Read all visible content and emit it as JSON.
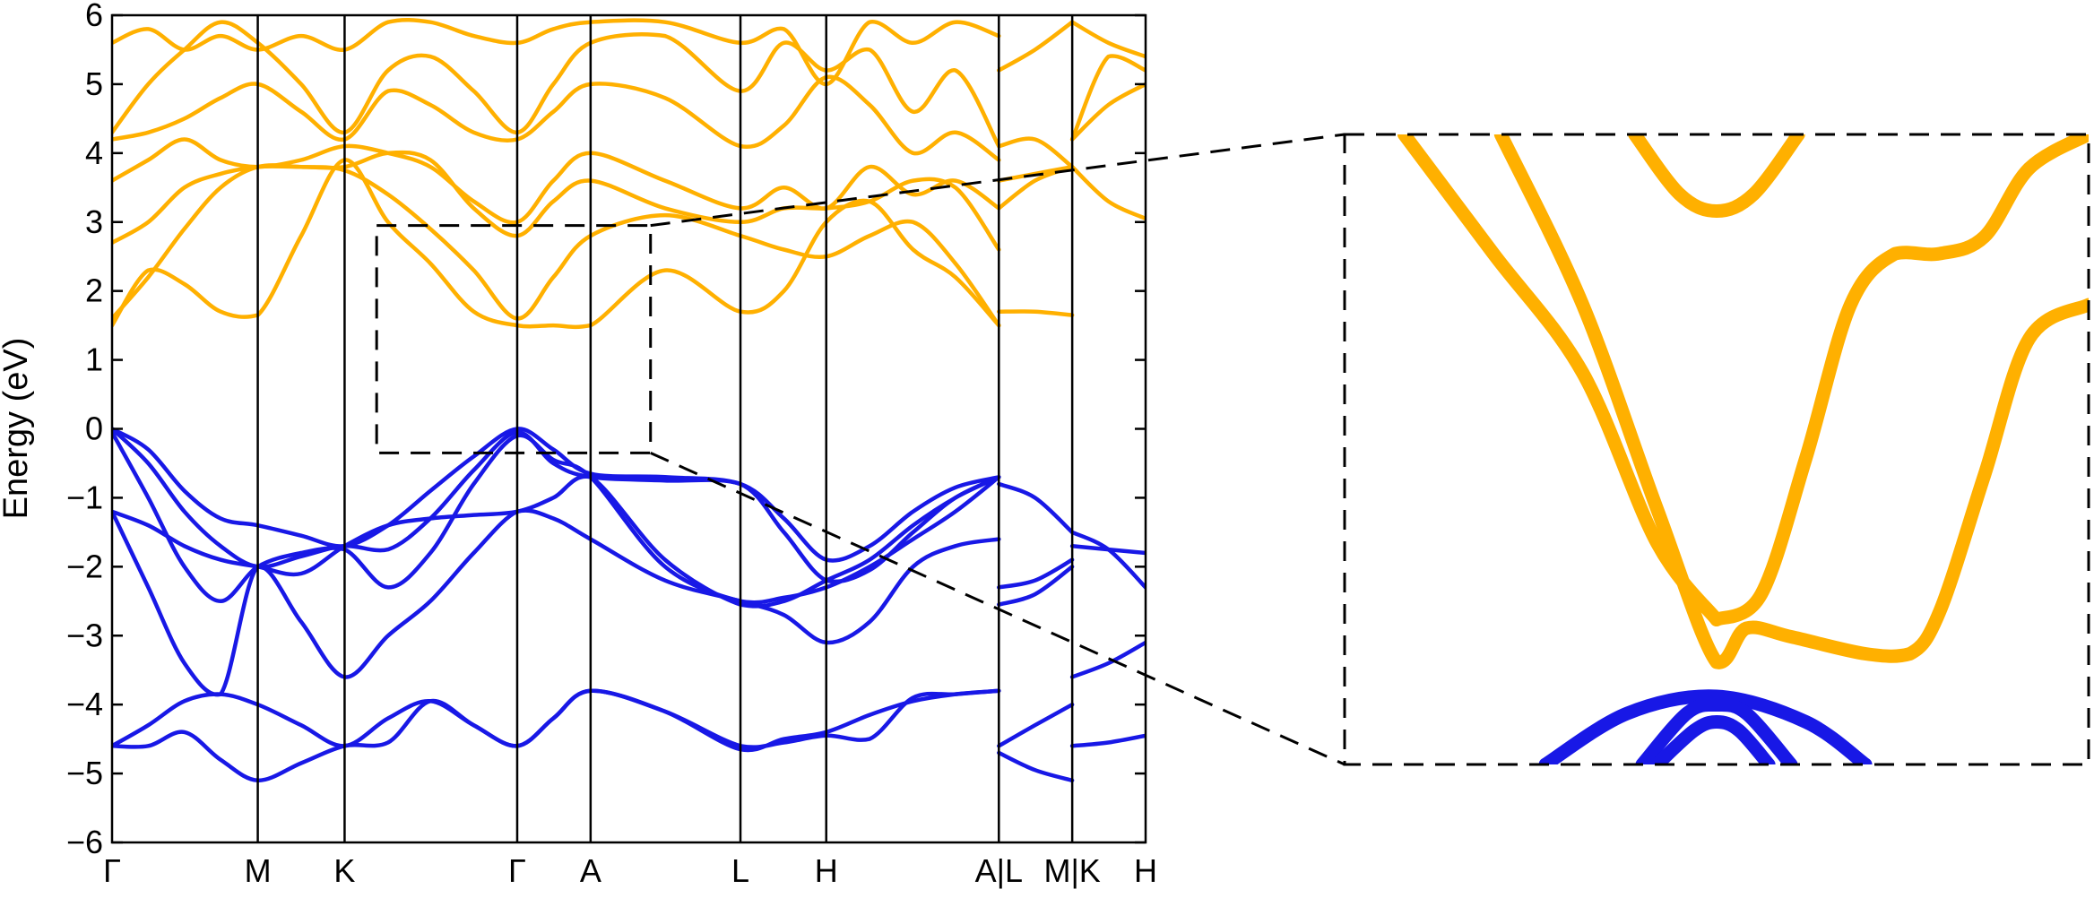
{
  "chart_data": {
    "type": "line",
    "title": "",
    "ylabel": "Energy (eV)",
    "xlabel": "",
    "ylim": [
      -6,
      6
    ],
    "yticks": [
      "6",
      "5",
      "4",
      "3",
      "2",
      "1",
      "0",
      "−1",
      "−2",
      "−3",
      "−4",
      "−5",
      "−6"
    ],
    "ytick_values": [
      6,
      5,
      4,
      3,
      2,
      1,
      0,
      -1,
      -2,
      -3,
      -4,
      -5,
      -6
    ],
    "xrange": [
      0,
      100
    ],
    "kpoints": [
      {
        "label": "Γ",
        "x": 0
      },
      {
        "label": "M",
        "x": 14.1
      },
      {
        "label": "K",
        "x": 22.5
      },
      {
        "label": "Γ",
        "x": 39.2
      },
      {
        "label": "A",
        "x": 46.3
      },
      {
        "label": "L",
        "x": 60.8
      },
      {
        "label": "H",
        "x": 69.1
      },
      {
        "label": "A|L",
        "x": 85.8
      },
      {
        "label": "M|K",
        "x": 92.9
      },
      {
        "label": "H",
        "x": 100
      }
    ],
    "colors": {
      "valence": "#1818e6",
      "conduction": "#ffb000"
    },
    "series": [
      {
        "class": "valence",
        "x": [
          0,
          3.5,
          7,
          10.5,
          14.1,
          18.3,
          22.5,
          26.7,
          30.8,
          35,
          39.2,
          42.7,
          46.3,
          53.5,
          60.8,
          65,
          69.1,
          73.3,
          77.5,
          81.6,
          85.8
        ],
        "values": [
          0,
          -0.3,
          -0.9,
          -1.3,
          -1.4,
          -1.55,
          -1.7,
          -1.4,
          -0.9,
          -0.4,
          0,
          -0.3,
          -0.65,
          -0.7,
          -0.8,
          -1.3,
          -1.9,
          -1.7,
          -1.2,
          -0.85,
          -0.7
        ]
      },
      {
        "class": "valence",
        "x": [
          0,
          3.5,
          7,
          10.5,
          14.1,
          18.3,
          22.5,
          26.7,
          30.8,
          35,
          39.2,
          42.7,
          46.3,
          53.5,
          60.8,
          65,
          69.1,
          73.3,
          77.5,
          81.6,
          85.8
        ],
        "values": [
          0,
          -0.5,
          -1.2,
          -1.7,
          -2.0,
          -1.85,
          -1.7,
          -1.75,
          -1.3,
          -0.6,
          -0.05,
          -0.5,
          -0.7,
          -0.75,
          -0.8,
          -1.5,
          -2.2,
          -2.05,
          -1.5,
          -1.0,
          -0.7
        ]
      },
      {
        "class": "valence",
        "x": [
          0,
          3.5,
          7,
          10.5,
          14.1,
          18.3,
          22.5,
          26.7,
          30.8,
          35,
          39.2,
          42.7,
          46.3,
          53.5,
          60.8,
          65,
          69.1,
          73.3,
          77.5,
          81.6,
          85.8
        ],
        "values": [
          -0.05,
          -1.0,
          -2.0,
          -2.5,
          -2.0,
          -1.8,
          -1.75,
          -2.3,
          -1.8,
          -0.8,
          -0.1,
          -0.45,
          -0.7,
          -2.0,
          -2.5,
          -2.45,
          -2.3,
          -2.0,
          -1.6,
          -1.2,
          -0.7
        ]
      },
      {
        "class": "valence",
        "x": [
          0,
          3.5,
          7,
          10.5,
          14.1,
          18.3,
          22.5,
          26.7,
          30.8,
          35,
          39.2,
          42.7,
          46.3,
          53.5,
          60.8,
          65,
          69.1,
          73.3,
          77.5,
          81.6,
          85.8
        ],
        "values": [
          -1.2,
          -1.4,
          -1.7,
          -1.9,
          -2.0,
          -2.1,
          -1.7,
          -1.4,
          -1.3,
          -1.25,
          -1.2,
          -1.0,
          -0.7,
          -1.9,
          -2.55,
          -2.5,
          -2.2,
          -1.9,
          -1.4,
          -1.0,
          -0.7
        ]
      },
      {
        "class": "valence",
        "x": [
          0,
          3.5,
          7,
          10.5,
          14.1,
          18.3,
          22.5,
          26.7,
          30.8,
          35,
          39.2,
          42.7,
          46.3,
          53.5,
          60.8,
          65,
          69.1,
          73.3,
          77.5,
          81.6,
          85.8
        ],
        "values": [
          -1.2,
          -2.3,
          -3.4,
          -3.85,
          -2.0,
          -2.8,
          -3.6,
          -3.0,
          -2.5,
          -1.8,
          -1.2,
          -1.3,
          -1.6,
          -2.2,
          -2.5,
          -2.7,
          -3.1,
          -2.8,
          -2.0,
          -1.7,
          -1.6
        ]
      },
      {
        "class": "valence",
        "x": [
          0,
          3.5,
          7,
          10.5,
          14.1,
          18.3,
          22.5,
          26.7,
          30.8,
          35,
          39.2,
          42.7,
          46.3,
          53.5,
          60.8,
          65,
          69.1,
          73.3,
          77.5,
          81.6,
          85.8
        ],
        "values": [
          -4.6,
          -4.3,
          -3.95,
          -3.85,
          -4.0,
          -4.3,
          -4.6,
          -4.2,
          -3.95,
          -4.3,
          -4.6,
          -4.2,
          -3.8,
          -4.1,
          -4.65,
          -4.5,
          -4.4,
          -4.15,
          -3.95,
          -3.85,
          -3.8
        ]
      },
      {
        "class": "valence",
        "x": [
          0,
          3.5,
          7,
          10.5,
          14.1,
          18.3,
          22.5,
          26.7,
          30.8,
          35,
          39.2,
          42.7,
          46.3,
          53.5,
          60.8,
          65,
          69.1,
          73.3,
          77.5,
          81.6,
          85.8
        ],
        "values": [
          -4.6,
          -4.6,
          -4.4,
          -4.8,
          -5.1,
          -4.85,
          -4.6,
          -4.55,
          -3.95,
          -4.3,
          -4.6,
          -4.2,
          -3.8,
          -4.1,
          -4.6,
          -4.55,
          -4.45,
          -4.5,
          -3.9,
          -3.85,
          -3.8
        ]
      },
      {
        "class": "valence",
        "x": [
          85.8,
          89.3,
          92.9
        ],
        "values": [
          -0.8,
          -1.0,
          -1.5
        ]
      },
      {
        "class": "valence",
        "x": [
          85.8,
          89.3,
          92.9
        ],
        "values": [
          -2.3,
          -2.2,
          -1.9
        ]
      },
      {
        "class": "valence",
        "x": [
          85.8,
          89.3,
          92.9
        ],
        "values": [
          -2.55,
          -2.4,
          -2.0
        ]
      },
      {
        "class": "valence",
        "x": [
          85.8,
          89.3,
          92.9
        ],
        "values": [
          -4.6,
          -4.3,
          -4.0
        ]
      },
      {
        "class": "valence",
        "x": [
          85.8,
          89.3,
          92.9
        ],
        "values": [
          -4.7,
          -4.95,
          -5.1
        ]
      },
      {
        "class": "valence",
        "x": [
          92.9,
          96.4,
          100
        ],
        "values": [
          -1.5,
          -1.75,
          -2.3
        ]
      },
      {
        "class": "valence",
        "x": [
          92.9,
          96.4,
          100
        ],
        "values": [
          -1.7,
          -1.75,
          -1.8
        ]
      },
      {
        "class": "valence",
        "x": [
          92.9,
          96.4,
          100
        ],
        "values": [
          -3.6,
          -3.4,
          -3.1
        ]
      },
      {
        "class": "valence",
        "x": [
          92.9,
          96.4,
          100
        ],
        "values": [
          -4.6,
          -4.55,
          -4.45
        ]
      },
      {
        "class": "conduction",
        "x": [
          0,
          3.5,
          7,
          10.5,
          14.1,
          18.3,
          22.5,
          26.7,
          30.8,
          35,
          39.2,
          42.7,
          46.3,
          53.5,
          60.8,
          65,
          69.1,
          73.3,
          77.5,
          81.6,
          85.8
        ],
        "values": [
          1.5,
          2.3,
          2.1,
          1.7,
          1.65,
          2.8,
          3.9,
          3.0,
          2.4,
          1.7,
          1.5,
          1.5,
          1.5,
          2.3,
          1.7,
          2.0,
          3.0,
          3.3,
          2.6,
          2.2,
          1.5
        ]
      },
      {
        "class": "conduction",
        "x": [
          0,
          3.5,
          7,
          10.5,
          14.1,
          18.3,
          22.5,
          26.7,
          30.8,
          35,
          39.2,
          42.7,
          46.3,
          53.5,
          60.8,
          65,
          69.1,
          73.3,
          77.5,
          81.6,
          85.8
        ],
        "values": [
          1.6,
          2.2,
          2.9,
          3.5,
          3.8,
          3.8,
          3.75,
          3.4,
          2.9,
          2.3,
          1.6,
          2.2,
          2.8,
          3.1,
          2.8,
          2.6,
          2.5,
          2.8,
          3.0,
          2.4,
          1.5
        ]
      },
      {
        "class": "conduction",
        "x": [
          0,
          3.5,
          7,
          10.5,
          14.1,
          18.3,
          22.5,
          26.7,
          30.8,
          35,
          39.2,
          42.7,
          46.3,
          53.5,
          60.8,
          65,
          69.1,
          73.3,
          77.5,
          81.6,
          85.8
        ],
        "values": [
          2.7,
          3.0,
          3.5,
          3.7,
          3.8,
          3.8,
          3.8,
          4.0,
          3.9,
          3.2,
          2.8,
          3.3,
          3.6,
          3.2,
          3.0,
          3.2,
          3.2,
          3.3,
          3.6,
          3.5,
          2.6
        ]
      },
      {
        "class": "conduction",
        "x": [
          0,
          3.5,
          7,
          10.5,
          14.1,
          18.3,
          22.5,
          26.7,
          30.8,
          35,
          39.2,
          42.7,
          46.3,
          53.5,
          60.8,
          65,
          69.1,
          73.3,
          77.5,
          81.6,
          85.8
        ],
        "values": [
          3.6,
          3.9,
          4.2,
          3.9,
          3.8,
          3.9,
          4.1,
          4.0,
          3.8,
          3.3,
          3.0,
          3.6,
          4.0,
          3.6,
          3.2,
          3.5,
          3.2,
          3.8,
          3.4,
          3.6,
          3.2
        ]
      },
      {
        "class": "conduction",
        "x": [
          0,
          3.5,
          7,
          10.5,
          14.1,
          18.3,
          22.5,
          26.7,
          30.8,
          35,
          39.2,
          42.7,
          46.3,
          53.5,
          60.8,
          65,
          69.1,
          73.3,
          77.5,
          81.6,
          85.8
        ],
        "values": [
          4.2,
          4.3,
          4.5,
          4.8,
          5.0,
          4.6,
          4.2,
          4.9,
          4.7,
          4.3,
          4.2,
          4.6,
          5.0,
          4.8,
          4.1,
          4.4,
          5.1,
          4.7,
          4.0,
          4.3,
          3.9
        ]
      },
      {
        "class": "conduction",
        "x": [
          0,
          3.5,
          7,
          10.5,
          14.1,
          18.3,
          22.5,
          26.7,
          30.8,
          35,
          39.2,
          42.7,
          46.3,
          53.5,
          60.8,
          65,
          69.1,
          73.3,
          77.5,
          81.6,
          85.8
        ],
        "values": [
          4.3,
          5.0,
          5.5,
          5.9,
          5.6,
          5.0,
          4.3,
          5.2,
          5.4,
          4.9,
          4.3,
          5.0,
          5.6,
          5.7,
          4.9,
          5.6,
          5.2,
          5.5,
          4.6,
          5.2,
          4.1
        ]
      },
      {
        "class": "conduction",
        "x": [
          0,
          3.5,
          7,
          10.5,
          14.1,
          18.3,
          22.5,
          26.7,
          30.8,
          35,
          39.2,
          42.7,
          46.3,
          53.5,
          60.8,
          65,
          69.1,
          73.3,
          77.5,
          81.6,
          85.8
        ],
        "values": [
          5.6,
          5.8,
          5.5,
          5.7,
          5.5,
          5.7,
          5.5,
          5.9,
          5.9,
          5.7,
          5.6,
          5.8,
          5.9,
          5.9,
          5.6,
          5.8,
          5.0,
          5.9,
          5.6,
          5.9,
          5.7
        ]
      },
      {
        "class": "conduction",
        "x": [
          85.8,
          89.3,
          92.9
        ],
        "values": [
          1.7,
          1.7,
          1.65
        ]
      },
      {
        "class": "conduction",
        "x": [
          85.8,
          89.3,
          92.9
        ],
        "values": [
          3.2,
          3.6,
          3.8
        ]
      },
      {
        "class": "conduction",
        "x": [
          85.8,
          89.3,
          92.9
        ],
        "values": [
          3.6,
          3.7,
          3.8
        ]
      },
      {
        "class": "conduction",
        "x": [
          85.8,
          89.3,
          92.9
        ],
        "values": [
          4.1,
          4.2,
          3.8
        ]
      },
      {
        "class": "conduction",
        "x": [
          85.8,
          89.3,
          92.9
        ],
        "values": [
          5.2,
          5.5,
          5.9
        ]
      },
      {
        "class": "conduction",
        "x": [
          92.9,
          96.4,
          100
        ],
        "values": [
          3.8,
          3.3,
          3.05
        ]
      },
      {
        "class": "conduction",
        "x": [
          92.9,
          96.4,
          100
        ],
        "values": [
          4.2,
          4.7,
          5.0
        ]
      },
      {
        "class": "conduction",
        "x": [
          92.9,
          96.4,
          100
        ],
        "values": [
          4.2,
          5.4,
          5.2
        ]
      },
      {
        "class": "conduction",
        "x": [
          92.9,
          96.4,
          100
        ],
        "values": [
          5.9,
          5.6,
          5.4
        ]
      }
    ],
    "inset": {
      "source_xlim": [
        25.6,
        52.1
      ],
      "source_ylim": [
        -0.35,
        2.95
      ],
      "xlim": [
        0,
        100
      ],
      "ylim": [
        -0.5,
        3.2
      ],
      "series": [
        {
          "class": "conduction",
          "x": [
            8,
            20,
            32,
            42,
            50
          ],
          "values": [
            3.2,
            2.5,
            1.8,
            0.8,
            0.35
          ]
        },
        {
          "class": "conduction",
          "x": [
            50,
            56,
            62,
            68,
            74,
            80,
            86,
            92,
            100
          ],
          "values": [
            0.35,
            0.5,
            1.3,
            2.2,
            2.5,
            2.5,
            2.6,
            3.0,
            3.2
          ]
        },
        {
          "class": "conduction",
          "x": [
            21,
            32,
            42,
            50,
            54,
            60,
            70,
            76,
            80,
            86,
            92,
            100
          ],
          "values": [
            3.2,
            2.2,
            1.0,
            0.1,
            0.3,
            0.25,
            0.15,
            0.15,
            0.4,
            1.2,
            2.0,
            2.2
          ]
        },
        {
          "class": "conduction",
          "x": [
            39,
            45,
            50,
            55,
            61
          ],
          "values": [
            3.2,
            2.85,
            2.75,
            2.85,
            3.2
          ]
        },
        {
          "class": "valence",
          "x": [
            27,
            38,
            50,
            62,
            70
          ],
          "values": [
            -0.5,
            -0.2,
            -0.1,
            -0.25,
            -0.5
          ]
        },
        {
          "class": "valence",
          "x": [
            40,
            46,
            50,
            54,
            60
          ],
          "values": [
            -0.5,
            -0.2,
            -0.15,
            -0.2,
            -0.5
          ]
        },
        {
          "class": "valence",
          "x": [
            42,
            47,
            50,
            53,
            57
          ],
          "values": [
            -0.5,
            -0.3,
            -0.25,
            -0.3,
            -0.5
          ]
        }
      ]
    }
  }
}
